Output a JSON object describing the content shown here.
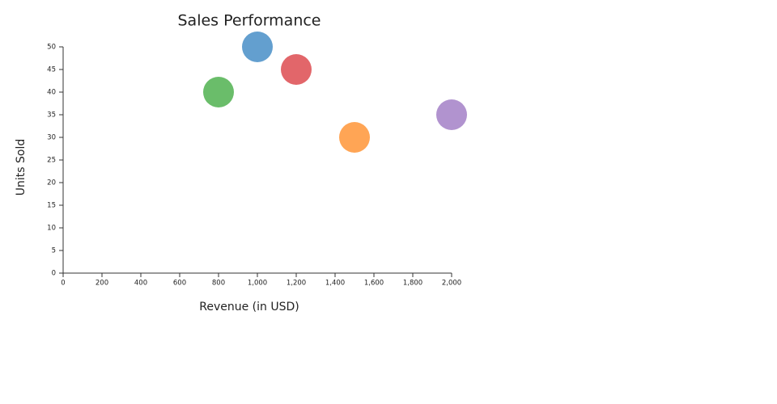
{
  "chart_data": {
    "type": "scatter",
    "title": "Sales Performance",
    "x_label": "Revenue (in USD)",
    "y_label": "Units Sold",
    "x": [
      800,
      1000,
      1200,
      1500,
      2000
    ],
    "values": [
      40,
      50,
      45,
      30,
      35
    ],
    "colors": [
      "#6abd6a",
      "#639fcf",
      "#e2666a",
      "#ffa555",
      "#b193cf"
    ],
    "xlim": [
      0,
      2000
    ],
    "xticks": [
      0,
      200,
      400,
      600,
      800,
      {
        "value": 1000,
        "label": "1,000"
      },
      {
        "value": 1200,
        "label": "1,200"
      },
      {
        "value": 1400,
        "label": "1,400"
      },
      {
        "value": 1600,
        "label": "1,600"
      },
      {
        "value": 1800,
        "label": "1,800"
      },
      {
        "value": 2000,
        "label": "2,000"
      }
    ],
    "ylim": [
      0,
      50
    ],
    "yticks": [
      0,
      5,
      10,
      15,
      20,
      25,
      30,
      35,
      40,
      45,
      50
    ]
  }
}
